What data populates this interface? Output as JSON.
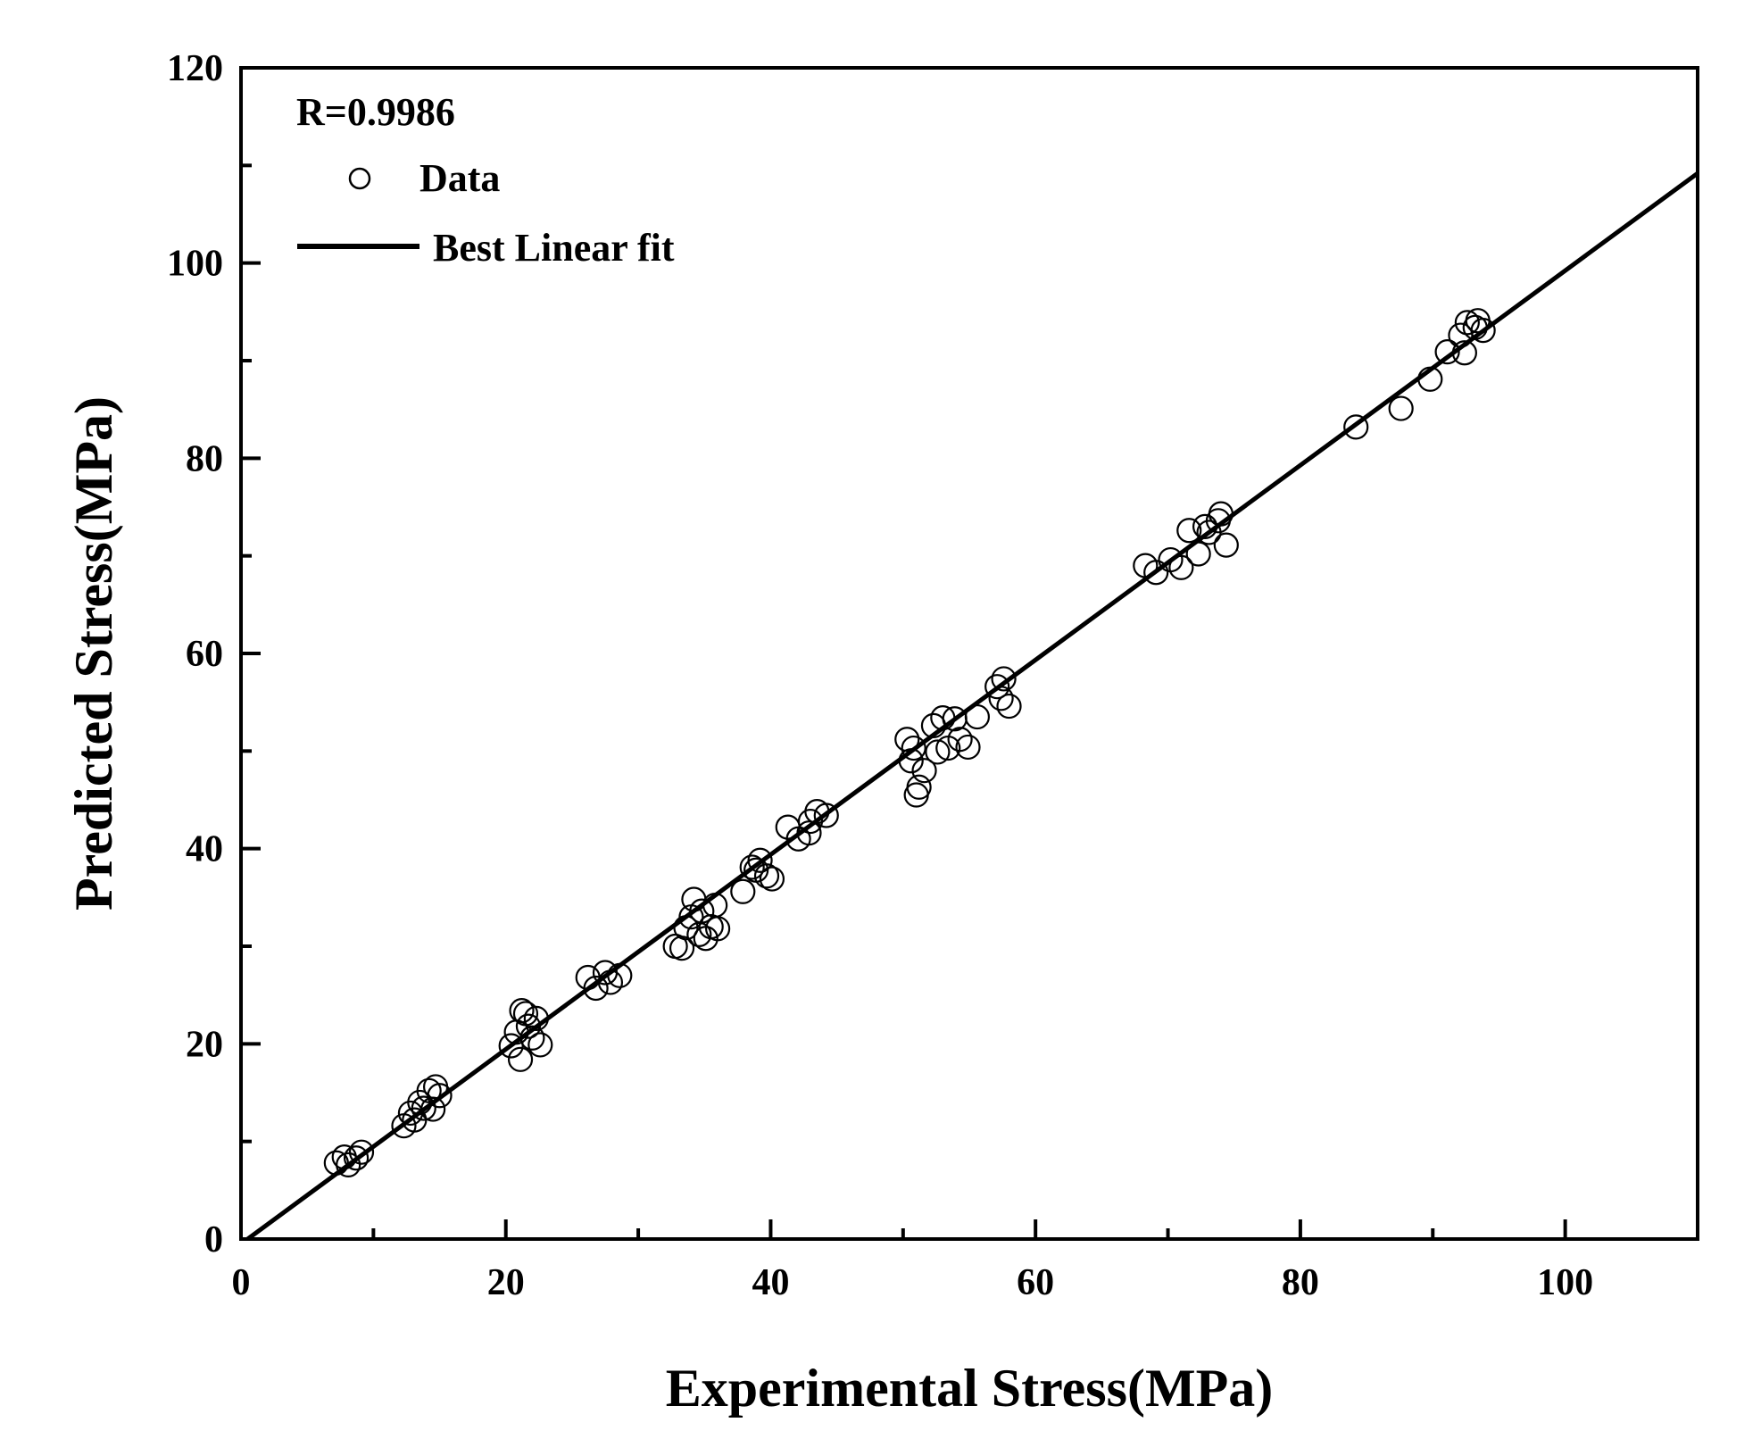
{
  "chart_data": {
    "type": "scatter",
    "xlabel": "Experimental Stress(MPa)",
    "ylabel": "Predicted Stress(MPa)",
    "xlim": [
      0,
      110
    ],
    "ylim": [
      0,
      120
    ],
    "x_ticks": [
      0,
      20,
      40,
      60,
      80,
      100
    ],
    "y_ticks": [
      0,
      20,
      40,
      60,
      80,
      100,
      120
    ],
    "annotation": "R=0.9986",
    "legend": {
      "position": "top-left",
      "data_label": "Data",
      "fit_label": "Best Linear fit"
    },
    "fit_line": {
      "x": [
        0.5,
        110
      ],
      "y": [
        0.0,
        109.2
      ]
    },
    "series": [
      {
        "name": "Data",
        "points": [
          [
            7.2,
            7.8
          ],
          [
            8.1,
            7.6
          ],
          [
            8.7,
            8.3
          ],
          [
            9.1,
            8.9
          ],
          [
            7.8,
            8.4
          ],
          [
            12.3,
            11.6
          ],
          [
            13.1,
            12.2
          ],
          [
            13.8,
            13.4
          ],
          [
            14.2,
            15.2
          ],
          [
            14.7,
            15.6
          ],
          [
            13.5,
            14.0
          ],
          [
            15.0,
            14.7
          ],
          [
            12.8,
            12.9
          ],
          [
            14.5,
            13.3
          ],
          [
            20.4,
            19.8
          ],
          [
            21.1,
            18.4
          ],
          [
            21.5,
            23.1
          ],
          [
            22.3,
            22.6
          ],
          [
            22.0,
            20.6
          ],
          [
            20.8,
            21.2
          ],
          [
            21.7,
            21.8
          ],
          [
            22.6,
            19.9
          ],
          [
            21.2,
            23.4
          ],
          [
            26.2,
            26.8
          ],
          [
            26.8,
            25.7
          ],
          [
            27.5,
            27.3
          ],
          [
            28.6,
            27.0
          ],
          [
            27.9,
            26.3
          ],
          [
            32.8,
            30.0
          ],
          [
            33.6,
            31.9
          ],
          [
            34.2,
            34.8
          ],
          [
            34.8,
            33.6
          ],
          [
            35.1,
            30.8
          ],
          [
            35.5,
            32.0
          ],
          [
            36.0,
            31.8
          ],
          [
            33.3,
            29.8
          ],
          [
            34.6,
            31.2
          ],
          [
            35.8,
            34.2
          ],
          [
            34.0,
            33.0
          ],
          [
            37.9,
            35.6
          ],
          [
            38.6,
            38.1
          ],
          [
            39.2,
            38.8
          ],
          [
            39.7,
            37.2
          ],
          [
            40.1,
            36.9
          ],
          [
            38.9,
            37.8
          ],
          [
            41.3,
            42.2
          ],
          [
            42.1,
            41.0
          ],
          [
            42.9,
            41.6
          ],
          [
            43.5,
            43.8
          ],
          [
            44.2,
            43.4
          ],
          [
            43.0,
            42.8
          ],
          [
            50.3,
            51.2
          ],
          [
            50.8,
            50.3
          ],
          [
            51.2,
            46.3
          ],
          [
            51.6,
            48.0
          ],
          [
            50.6,
            49.0
          ],
          [
            51.0,
            45.5
          ],
          [
            52.3,
            52.6
          ],
          [
            53.0,
            53.4
          ],
          [
            53.9,
            53.3
          ],
          [
            54.3,
            51.2
          ],
          [
            54.9,
            50.4
          ],
          [
            55.6,
            53.5
          ],
          [
            53.4,
            50.3
          ],
          [
            52.6,
            49.9
          ],
          [
            57.1,
            56.6
          ],
          [
            57.6,
            57.4
          ],
          [
            58.0,
            54.6
          ],
          [
            57.4,
            55.4
          ],
          [
            68.3,
            69.0
          ],
          [
            69.1,
            68.3
          ],
          [
            70.2,
            69.6
          ],
          [
            71.0,
            68.8
          ],
          [
            71.6,
            72.6
          ],
          [
            72.3,
            70.2
          ],
          [
            73.1,
            72.4
          ],
          [
            73.8,
            73.6
          ],
          [
            74.4,
            71.1
          ],
          [
            74.0,
            74.3
          ],
          [
            72.8,
            73.0
          ],
          [
            84.2,
            83.2
          ],
          [
            87.6,
            85.1
          ],
          [
            89.8,
            88.1
          ],
          [
            91.1,
            90.9
          ],
          [
            92.1,
            92.6
          ],
          [
            92.6,
            93.9
          ],
          [
            92.4,
            90.8
          ],
          [
            93.2,
            93.4
          ],
          [
            93.8,
            93.1
          ],
          [
            93.4,
            94.1
          ]
        ]
      }
    ]
  }
}
